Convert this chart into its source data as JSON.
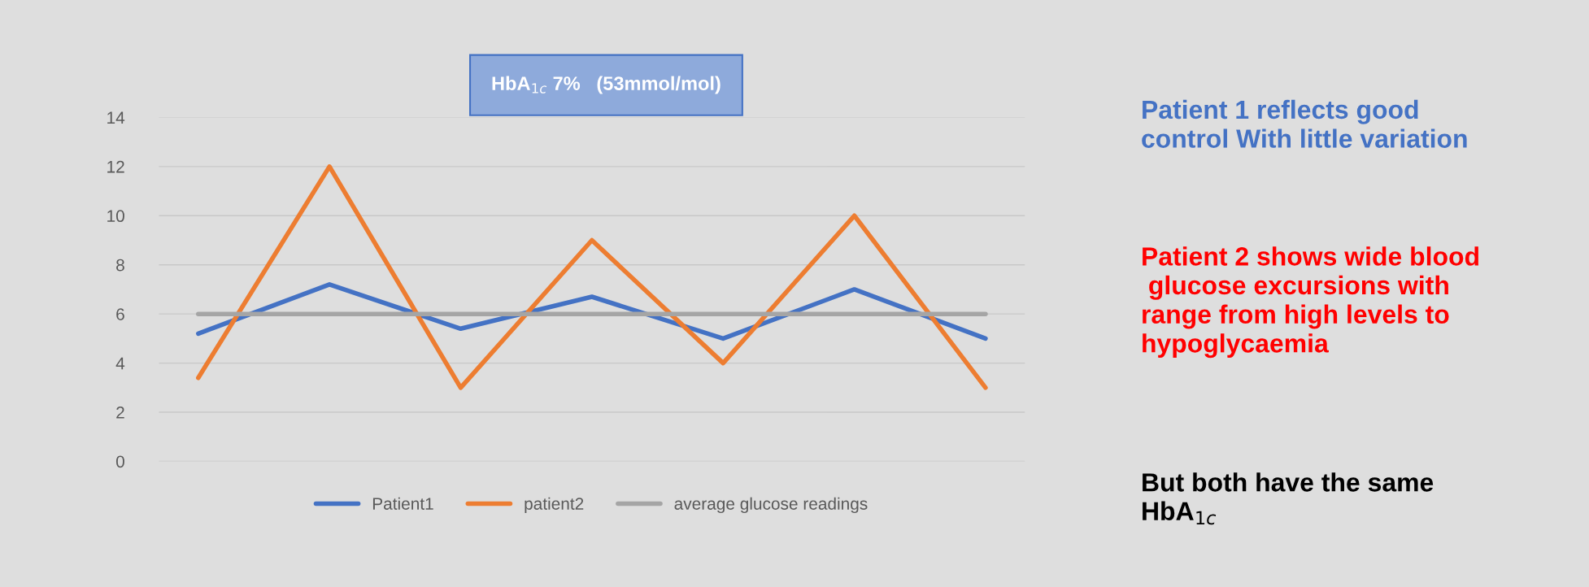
{
  "chart_data": {
    "type": "line",
    "title": "HbA$_{1c}$ 7%   (53mmol/mol)",
    "categories": [
      null,
      null,
      null,
      null,
      null,
      null,
      null
    ],
    "series": [
      {
        "name": "Patient1",
        "color": "#4472c4",
        "values": [
          5.2,
          7.2,
          5.4,
          6.7,
          5.0,
          7.0,
          5.0
        ]
      },
      {
        "name": "patient2",
        "color": "#ed7d31",
        "values": [
          3.4,
          12,
          3,
          9,
          4,
          10,
          3
        ]
      },
      {
        "name": "average glucose readings",
        "color": "#a5a5a5",
        "values": [
          6,
          6,
          6,
          6,
          6,
          6,
          6
        ]
      }
    ],
    "ylim": [
      0,
      14
    ],
    "yticks": [
      0,
      2,
      4,
      6,
      8,
      10,
      12,
      14
    ],
    "grid": "y",
    "legend": "bottom",
    "marker": "none",
    "line_style": "solid",
    "annotations": [
      "Patient 1 reflects good\ncontrol With little variation",
      "Patient 2 shows wide blood\n glucose excursions with\nrange from high levels to\nhypoglycaemia",
      "But both have the same\nHbA$_{1c}$"
    ]
  }
}
